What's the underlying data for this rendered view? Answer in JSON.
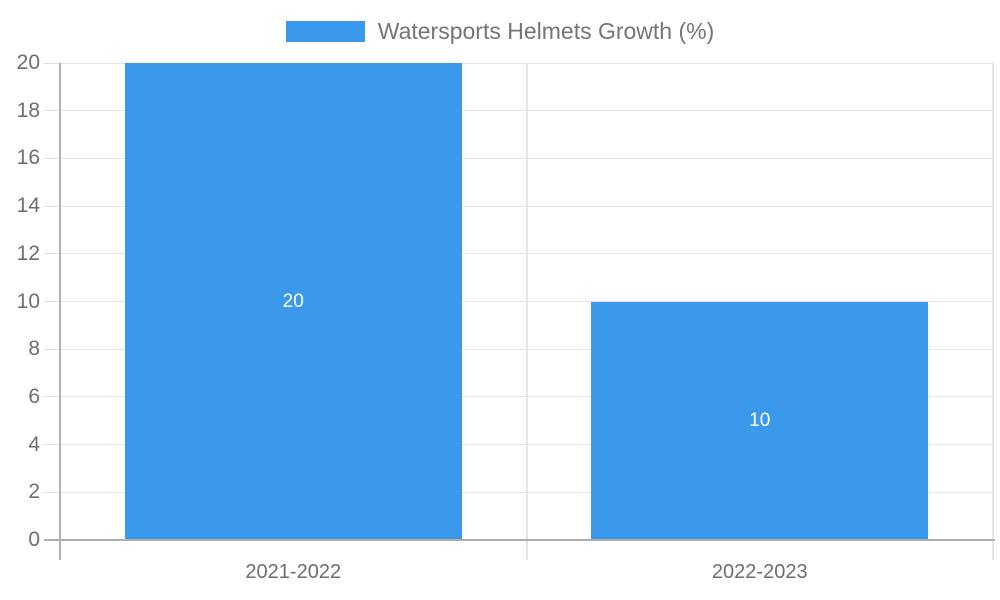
{
  "chart_data": {
    "type": "bar",
    "title": "",
    "categories": [
      "2021-2022",
      "2022-2023"
    ],
    "series": [
      {
        "name": "Watersports Helmets Growth (%)",
        "values": [
          20,
          10
        ]
      }
    ],
    "data_labels": [
      "20",
      "10"
    ],
    "xlabel": "",
    "ylabel": "",
    "ylim": [
      0,
      20
    ],
    "yticks": [
      0,
      2,
      4,
      6,
      8,
      10,
      12,
      14,
      16,
      18,
      20
    ],
    "grid": true,
    "legend_position": "top",
    "colors": {
      "bar": "#3B99EC",
      "bar_label_text": "#FFFFFF",
      "axis_text": "#6E6E6E",
      "legend_text": "#757575",
      "gridline": "#E6E6E6",
      "tick": "#E0E0E0",
      "baseline": "#ADADAD",
      "y_axis_line": "#B3B3B3",
      "category_divider": "#E4E4E4",
      "plot_right_border": "#E6E6E6",
      "background": "#FFFFFF"
    }
  }
}
